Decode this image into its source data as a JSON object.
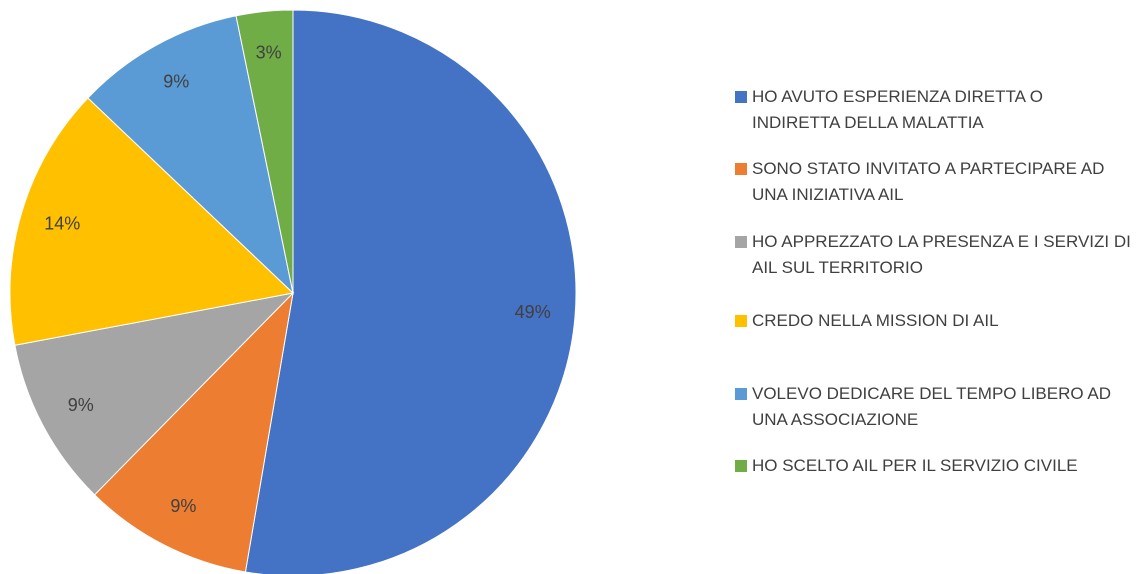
{
  "chart_data": {
    "type": "pie",
    "categories": [
      "HO AVUTO ESPERIENZA DIRETTA O INDIRETTA DELLA MALATTIA",
      "SONO STATO INVITATO A PARTECIPARE AD UNA INIZIATIVA AIL",
      "HO APPREZZATO LA PRESENZA E I SERVIZI DI AIL SUL TERRITORIO",
      "CREDO NELLA MISSION DI AIL",
      "VOLEVO DEDICARE DEL TEMPO LIBERO AD UNA ASSOCIAZIONE",
      "HO SCELTO AIL PER IL SERVIZIO CIVILE"
    ],
    "values": [
      49,
      9,
      9,
      14,
      9,
      3
    ],
    "value_labels": [
      "49%",
      "9%",
      "9%",
      "14%",
      "9%",
      "3%"
    ],
    "colors": [
      "#4472c4",
      "#ed7d31",
      "#a5a5a5",
      "#ffc000",
      "#5b9bd5",
      "#70ad47"
    ],
    "legend": "right"
  }
}
